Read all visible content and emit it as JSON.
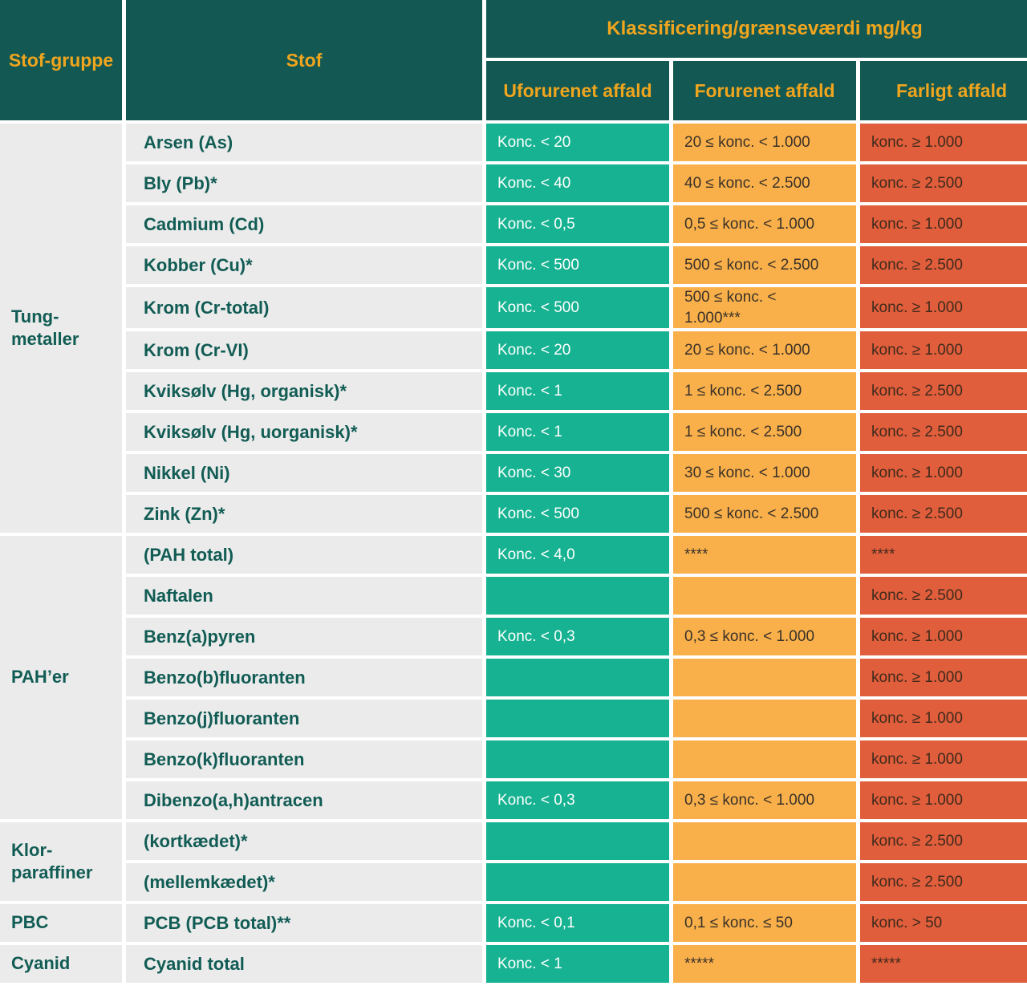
{
  "colors": {
    "teal": "#135852",
    "gold": "#f0a51e",
    "green": "#16b291",
    "orange": "#f9b04a",
    "red": "#e05e3b",
    "gray": "#ebebeb",
    "teal_text": "#115c54",
    "dark_on_orange": "#3a3129",
    "dark_on_red": "#3f2a1d"
  },
  "table": {
    "header": {
      "group_col": "Stof-gruppe",
      "substance_col": "Stof",
      "classification_col": "Klassificering/grænseværdi mg/kg",
      "sub_columns": [
        "Uforurenet affald",
        "Forurenet affald",
        "Farligt affald"
      ]
    },
    "groups": [
      {
        "name": "Tung-\nmetaller",
        "rows": [
          {
            "substance": "Arsen (As)",
            "uforurenet": "Konc. < 20",
            "forurenet": "20 ≤ konc. < 1.000",
            "farligt": "konc. ≥ 1.000"
          },
          {
            "substance": "Bly (Pb)*",
            "uforurenet": "Konc. < 40",
            "forurenet": "40 ≤ konc. < 2.500",
            "farligt": "konc. ≥ 2.500"
          },
          {
            "substance": "Cadmium (Cd)",
            "uforurenet": "Konc. < 0,5",
            "forurenet": "0,5 ≤ konc. < 1.000",
            "farligt": "konc. ≥ 1.000"
          },
          {
            "substance": "Kobber (Cu)*",
            "uforurenet": "Konc. < 500",
            "forurenet": "500 ≤ konc. < 2.500",
            "farligt": "konc. ≥ 2.500"
          },
          {
            "substance": "Krom (Cr-total)",
            "uforurenet": "Konc. < 500",
            "forurenet": "500 ≤ konc. <\n1.000***",
            "farligt": "konc. ≥ 1.000"
          },
          {
            "substance": "Krom (Cr-VI)",
            "uforurenet": "Konc. < 20",
            "forurenet": "20 ≤ konc. < 1.000",
            "farligt": "konc. ≥ 1.000"
          },
          {
            "substance": "Kviksølv (Hg, organisk)*",
            "uforurenet": "Konc. < 1",
            "forurenet": "1 ≤ konc. < 2.500",
            "farligt": "konc. ≥ 2.500"
          },
          {
            "substance": "Kviksølv (Hg, uorganisk)*",
            "uforurenet": "Konc. < 1",
            "forurenet": "1 ≤ konc. < 2.500",
            "farligt": "konc. ≥ 2.500"
          },
          {
            "substance": "Nikkel (Ni)",
            "uforurenet": "Konc. < 30",
            "forurenet": "30 ≤ konc. < 1.000",
            "farligt": "konc. ≥ 1.000"
          },
          {
            "substance": "Zink (Zn)*",
            "uforurenet": "Konc. < 500",
            "forurenet": "500 ≤ konc. < 2.500",
            "farligt": "konc. ≥ 2.500"
          }
        ]
      },
      {
        "name": "PAH’er",
        "rows": [
          {
            "substance": "(PAH total)",
            "uforurenet": "Konc. < 4,0",
            "forurenet": "****",
            "farligt": "****"
          },
          {
            "substance": "Naftalen",
            "uforurenet": "",
            "forurenet": "",
            "farligt": "konc. ≥ 2.500"
          },
          {
            "substance": "Benz(a)pyren",
            "uforurenet": "Konc. < 0,3",
            "forurenet": "0,3 ≤ konc. < 1.000",
            "farligt": "konc. ≥ 1.000"
          },
          {
            "substance": "Benzo(b)fluoranten",
            "uforurenet": "",
            "forurenet": "",
            "farligt": "konc. ≥ 1.000"
          },
          {
            "substance": "Benzo(j)fluoranten",
            "uforurenet": "",
            "forurenet": "",
            "farligt": "konc. ≥ 1.000"
          },
          {
            "substance": "Benzo(k)fluoranten",
            "uforurenet": "",
            "forurenet": "",
            "farligt": "konc. ≥ 1.000"
          },
          {
            "substance": "Dibenzo(a,h)antracen",
            "uforurenet": "Konc. < 0,3",
            "forurenet": "0,3 ≤ konc. < 1.000",
            "farligt": "konc. ≥ 1.000"
          }
        ]
      },
      {
        "name": "Klor-\nparaffiner",
        "rows": [
          {
            "substance": "(kortkædet)*",
            "uforurenet": "",
            "forurenet": "",
            "farligt": "konc. ≥ 2.500"
          },
          {
            "substance": "(mellemkædet)*",
            "uforurenet": "",
            "forurenet": "",
            "farligt": "konc. ≥ 2.500"
          }
        ]
      },
      {
        "name": "PBC",
        "rows": [
          {
            "substance": "PCB (PCB total)**",
            "uforurenet": "Konc. < 0,1",
            "forurenet": "0,1 ≤ konc. ≤ 50",
            "farligt": "konc. > 50"
          }
        ]
      },
      {
        "name": "Cyanid",
        "rows": [
          {
            "substance": "Cyanid total",
            "uforurenet": "Konc. < 1",
            "forurenet": "*****",
            "farligt": "*****"
          }
        ]
      }
    ]
  }
}
